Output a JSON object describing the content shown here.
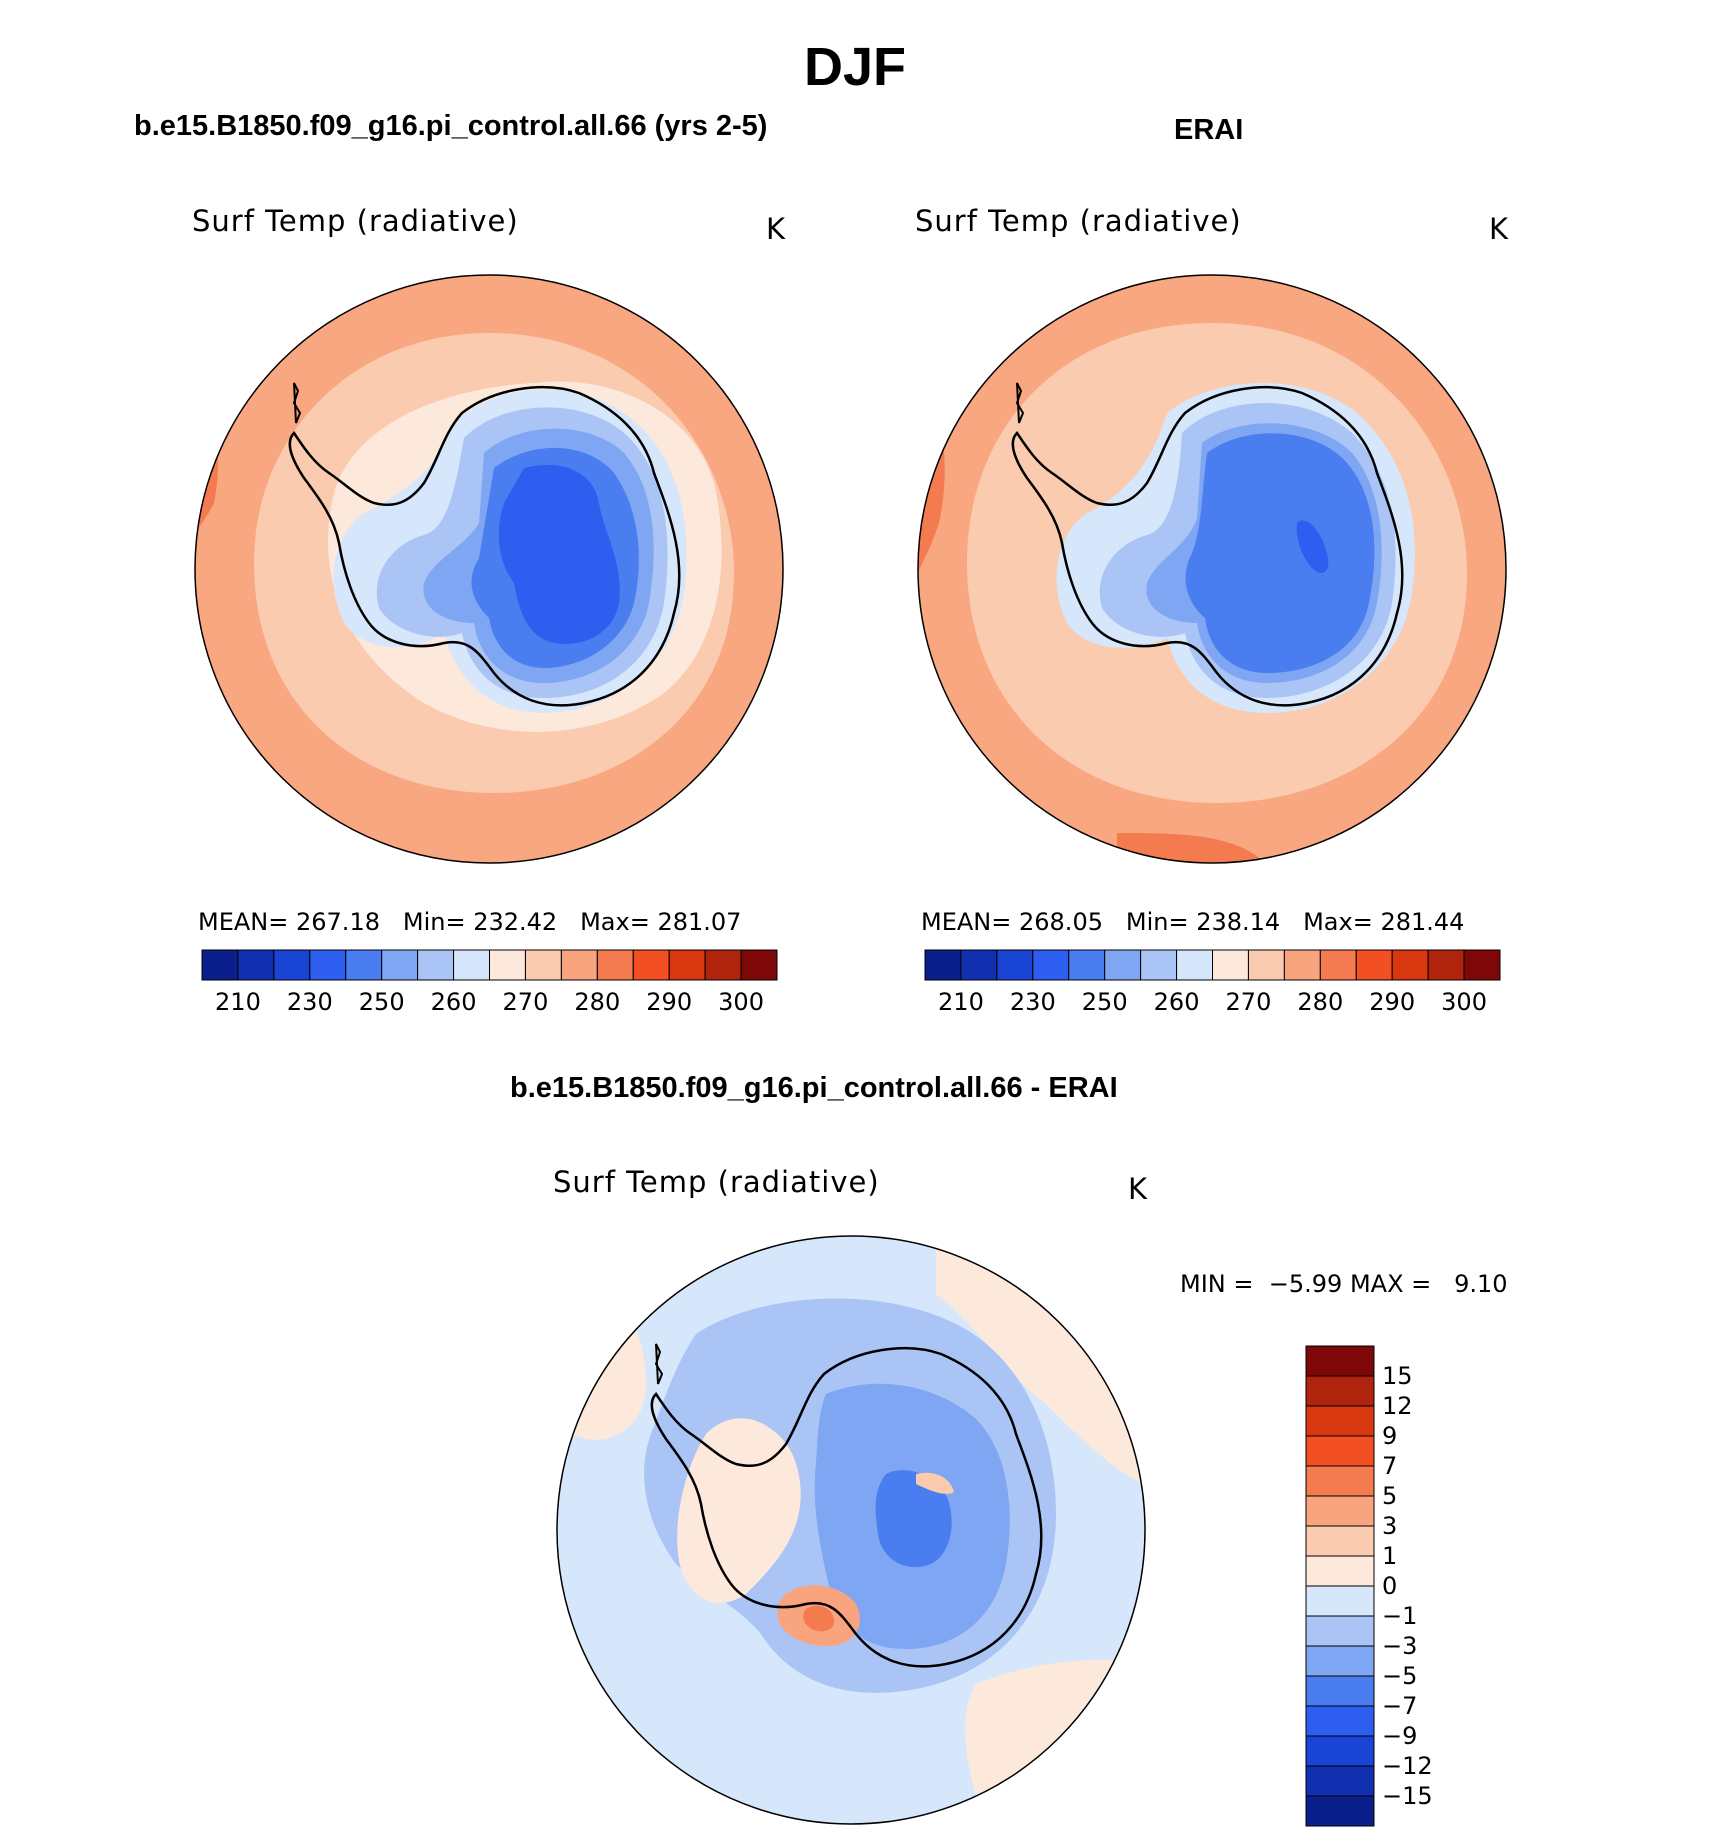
{
  "title": "DJF",
  "panels": [
    {
      "header": "b.e15.B1850.f09_g16.pi_control.all.66 (yrs 2-5)",
      "variable": "Surf Temp (radiative)",
      "units": "K",
      "stats": {
        "mean_label": "MEAN=",
        "mean": "267.18",
        "min_label": "Min=",
        "min": "232.42",
        "max_label": "Max=",
        "max": "281.07"
      },
      "colorbar_labels": [
        "210",
        "230",
        "250",
        "260",
        "270",
        "280",
        "290",
        "300"
      ]
    },
    {
      "header": "ERAI",
      "variable": "Surf Temp (radiative)",
      "units": "K",
      "stats": {
        "mean_label": "MEAN=",
        "mean": "268.05",
        "min_label": "Min=",
        "min": "238.14",
        "max_label": "Max=",
        "max": "281.44"
      },
      "colorbar_labels": [
        "210",
        "230",
        "250",
        "260",
        "270",
        "280",
        "290",
        "300"
      ]
    }
  ],
  "diff_panel": {
    "header": "b.e15.B1850.f09_g16.pi_control.all.66 - ERAI",
    "variable": "Surf Temp (radiative)",
    "units": "K",
    "min_label": "MIN =",
    "min": "−5.99",
    "max_label": "MAX =",
    "max": "9.10",
    "colorbar_labels": [
      "15",
      "12",
      "9",
      "7",
      "5",
      "3",
      "1",
      "0",
      "−1",
      "−3",
      "−5",
      "−7",
      "−9",
      "−12",
      "−15"
    ]
  },
  "colors": {
    "abs_scale": [
      "#0a1f8c",
      "#1030b0",
      "#1a44d4",
      "#2e5ef0",
      "#4a7ef0",
      "#7fa6f2",
      "#aac4f6",
      "#d6e6fb",
      "#fde8dc",
      "#fbcbb0",
      "#f8a47e",
      "#f47b4f",
      "#f24f22",
      "#d9370f",
      "#b0230c",
      "#7e0808"
    ],
    "diff_scale": [
      "#0a1f8c",
      "#1030b0",
      "#1a44d4",
      "#2e5ef0",
      "#4a7ef0",
      "#7fa6f2",
      "#aac4f6",
      "#d6e6fb",
      "#fde8dc",
      "#fbcbb0",
      "#f8a47e",
      "#f47b4f",
      "#f24f22",
      "#d9370f",
      "#b0230c",
      "#7e0808"
    ]
  }
}
